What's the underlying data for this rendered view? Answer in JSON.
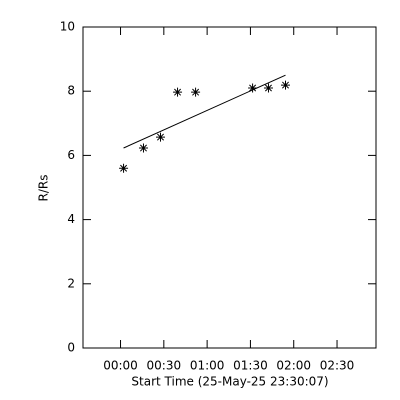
{
  "chart_data": {
    "type": "scatter",
    "x_label": "Start Time (25-May-25 23:30:07)",
    "y_label": "R/Rs",
    "xlim": [
      -26,
      177
    ],
    "ylim": [
      0,
      10
    ],
    "xticks": [
      {
        "value": 0,
        "label": "00:00"
      },
      {
        "value": 30,
        "label": "00:30"
      },
      {
        "value": 60,
        "label": "01:00"
      },
      {
        "value": 90,
        "label": "01:30"
      },
      {
        "value": 120,
        "label": "02:00"
      },
      {
        "value": 150,
        "label": "02:30"
      }
    ],
    "yticks": [
      0,
      2,
      4,
      6,
      8,
      10
    ],
    "color": "#000000",
    "series": [
      {
        "kind": "points",
        "x": [
          2.1,
          15.9,
          27.7,
          39.5,
          52,
          91.5,
          102.5,
          114.3
        ],
        "values": [
          5.6,
          6.23,
          6.57,
          7.97,
          7.97,
          8.1,
          8.1,
          8.19
        ]
      },
      {
        "kind": "fit",
        "x": [
          2.1,
          114.3
        ],
        "values": [
          6.23,
          8.5
        ]
      }
    ]
  }
}
